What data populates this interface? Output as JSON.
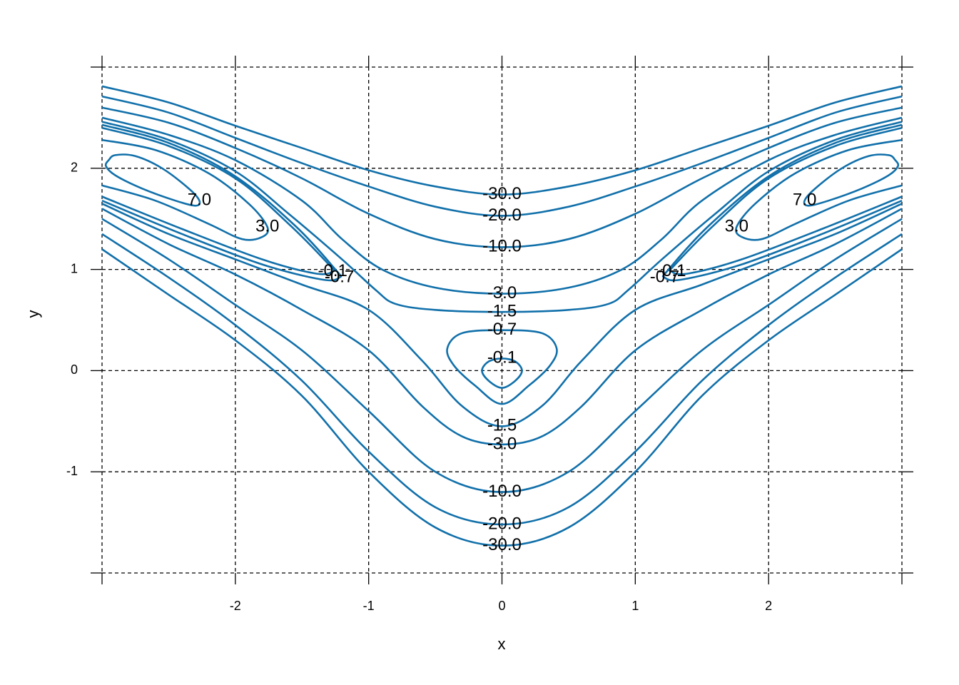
{
  "chart_data": {
    "type": "contour",
    "xlabel": "x",
    "ylabel": "y",
    "xlim": [
      -3,
      3
    ],
    "ylim": [
      -2,
      3
    ],
    "xticks": [
      -2,
      -1,
      0,
      1,
      2
    ],
    "yticks": [
      -1,
      0,
      1,
      2
    ],
    "grid": true,
    "color": "#1170aa",
    "contours": [
      {
        "level": 7,
        "label": "7.0",
        "pieces": [
          {
            "closed": true,
            "x": [
              -2.95,
              -2.9,
              -2.75,
              -2.55,
              -2.35,
              -2.27,
              -2.3,
              -2.45,
              -2.7,
              -2.9,
              -2.97
            ],
            "y": [
              2.08,
              2.13,
              2.12,
              2.0,
              1.8,
              1.68,
              1.63,
              1.68,
              1.8,
              1.93,
              2.02
            ]
          },
          {
            "closed": true,
            "x": [
              2.95,
              2.9,
              2.75,
              2.55,
              2.35,
              2.27,
              2.3,
              2.45,
              2.7,
              2.9,
              2.97
            ],
            "y": [
              2.08,
              2.13,
              2.12,
              2.0,
              1.8,
              1.68,
              1.63,
              1.68,
              1.8,
              1.93,
              2.02
            ]
          }
        ]
      },
      {
        "level": 3,
        "label": "3.0",
        "pieces": [
          {
            "closed": false,
            "x": [
              -3,
              -2.6,
              -2.2,
              -1.9,
              -1.76,
              -1.8,
              -1.95,
              -2.2,
              -2.6,
              -3
            ],
            "y": [
              2.28,
              2.18,
              1.95,
              1.65,
              1.42,
              1.32,
              1.3,
              1.45,
              1.68,
              1.83
            ]
          },
          {
            "closed": false,
            "x": [
              3,
              2.6,
              2.2,
              1.9,
              1.76,
              1.8,
              1.95,
              2.2,
              2.6,
              3
            ],
            "y": [
              2.28,
              2.18,
              1.95,
              1.65,
              1.42,
              1.32,
              1.3,
              1.45,
              1.68,
              1.83
            ]
          }
        ]
      },
      {
        "level": -0.1,
        "label": "-0.1",
        "pieces": [
          {
            "closed": false,
            "x": [
              -3,
              -2.5,
              -2.0,
              -1.6,
              -1.3,
              -1.27,
              -1.4,
              -1.8,
              -2.4,
              -3
            ],
            "y": [
              2.4,
              2.22,
              1.9,
              1.45,
              1.05,
              0.98,
              0.96,
              1.1,
              1.4,
              1.72
            ]
          },
          {
            "closed": false,
            "x": [
              3,
              2.5,
              2.0,
              1.6,
              1.3,
              1.27,
              1.4,
              1.8,
              2.4,
              3
            ],
            "y": [
              2.4,
              2.22,
              1.9,
              1.45,
              1.05,
              0.98,
              0.96,
              1.1,
              1.4,
              1.72
            ]
          },
          {
            "closed": true,
            "x": [
              0,
              0.1,
              0.15,
              0.1,
              0,
              -0.1,
              -0.15,
              -0.1
            ],
            "y": [
              0.12,
              0.09,
              0.0,
              -0.1,
              -0.17,
              -0.1,
              0.0,
              0.09
            ]
          }
        ]
      },
      {
        "level": -0.7,
        "label": "-0.7",
        "pieces": [
          {
            "closed": false,
            "x": [
              -3,
              -2.5,
              -2.0,
              -1.55,
              -1.25,
              -1.22,
              -1.35,
              -1.8,
              -2.4,
              -3
            ],
            "y": [
              2.43,
              2.25,
              1.92,
              1.43,
              1.0,
              0.92,
              0.9,
              1.05,
              1.35,
              1.68
            ]
          },
          {
            "closed": false,
            "x": [
              3,
              2.5,
              2.0,
              1.55,
              1.25,
              1.22,
              1.35,
              1.8,
              2.4,
              3
            ],
            "y": [
              2.43,
              2.25,
              1.92,
              1.43,
              1.0,
              0.92,
              0.9,
              1.05,
              1.35,
              1.68
            ]
          },
          {
            "closed": true,
            "x": [
              0,
              0.3,
              0.41,
              0.36,
              0.2,
              0,
              -0.2,
              -0.36,
              -0.41,
              -0.3
            ],
            "y": [
              0.4,
              0.37,
              0.22,
              0.05,
              -0.15,
              -0.33,
              -0.15,
              0.05,
              0.22,
              0.37
            ]
          }
        ]
      },
      {
        "level": -1.5,
        "label": "-1.5",
        "pieces": [
          {
            "closed": false,
            "x": [
              -3,
              -2.5,
              -2.0,
              -1.6,
              -1.2,
              -0.95,
              -0.8,
              -0.5,
              0,
              0.5,
              0.8,
              0.95,
              1.2,
              1.6,
              2.0,
              2.5,
              3
            ],
            "y": [
              2.46,
              2.28,
              1.97,
              1.55,
              1.1,
              0.8,
              0.66,
              0.6,
              0.58,
              0.6,
              0.66,
              0.8,
              1.1,
              1.55,
              1.97,
              2.28,
              2.46
            ]
          },
          {
            "closed": false,
            "x": [
              -3,
              -2.5,
              -2,
              -1.5,
              -1,
              -0.6,
              -0.3,
              0,
              0.3,
              0.6,
              1,
              1.5,
              2,
              2.5,
              3
            ],
            "y": [
              1.65,
              1.35,
              1.1,
              0.85,
              0.6,
              0.1,
              -0.35,
              -0.55,
              -0.35,
              0.1,
              0.6,
              0.85,
              1.1,
              1.35,
              1.65
            ]
          }
        ]
      },
      {
        "level": -3,
        "label": "-3.0",
        "pieces": [
          {
            "closed": false,
            "x": [
              -3,
              -2.5,
              -2,
              -1.5,
              -1.2,
              -0.9,
              -0.5,
              0,
              0.5,
              0.9,
              1.2,
              1.5,
              2,
              2.5,
              3
            ],
            "y": [
              2.5,
              2.33,
              2.08,
              1.68,
              1.3,
              1.0,
              0.82,
              0.76,
              0.82,
              1.0,
              1.3,
              1.68,
              2.08,
              2.33,
              2.5
            ]
          },
          {
            "closed": false,
            "x": [
              -3,
              -2.5,
              -2,
              -1.5,
              -1,
              -0.6,
              -0.3,
              0,
              0.3,
              0.6,
              1,
              1.5,
              2,
              2.5,
              3
            ],
            "y": [
              1.6,
              1.25,
              0.95,
              0.6,
              0.2,
              -0.35,
              -0.65,
              -0.73,
              -0.65,
              -0.35,
              0.2,
              0.6,
              0.95,
              1.25,
              1.6
            ]
          }
        ]
      },
      {
        "level": -10,
        "label": "-10.0",
        "pieces": [
          {
            "closed": false,
            "x": [
              -3,
              -2.5,
              -2,
              -1.5,
              -1,
              -0.5,
              0,
              0.5,
              1,
              1.5,
              2,
              2.5,
              3
            ],
            "y": [
              2.6,
              2.45,
              2.2,
              1.9,
              1.55,
              1.3,
              1.22,
              1.3,
              1.55,
              1.9,
              2.2,
              2.45,
              2.6
            ]
          },
          {
            "closed": false,
            "x": [
              -3,
              -2.5,
              -2,
              -1.5,
              -1,
              -0.5,
              0,
              0.5,
              1,
              1.5,
              2,
              2.5,
              3
            ],
            "y": [
              1.5,
              1.1,
              0.65,
              0.2,
              -0.4,
              -1.0,
              -1.2,
              -1.0,
              -0.4,
              0.2,
              0.65,
              1.1,
              1.5
            ]
          }
        ]
      },
      {
        "level": -20,
        "label": "-20.0",
        "pieces": [
          {
            "closed": false,
            "x": [
              -3,
              -2.5,
              -2,
              -1.5,
              -1,
              -0.5,
              0,
              0.5,
              1,
              1.5,
              2,
              2.5,
              3
            ],
            "y": [
              2.71,
              2.55,
              2.3,
              2.05,
              1.82,
              1.62,
              1.53,
              1.62,
              1.82,
              2.05,
              2.3,
              2.55,
              2.71
            ]
          },
          {
            "closed": false,
            "x": [
              -3,
              -2.5,
              -2,
              -1.5,
              -1,
              -0.5,
              0,
              0.5,
              1,
              1.5,
              2,
              2.5,
              3
            ],
            "y": [
              1.35,
              0.92,
              0.45,
              -0.1,
              -0.8,
              -1.35,
              -1.52,
              -1.35,
              -0.8,
              -0.1,
              0.45,
              0.92,
              1.35
            ]
          }
        ]
      },
      {
        "level": -30,
        "label": "-30.0",
        "pieces": [
          {
            "closed": false,
            "x": [
              -3,
              -2.5,
              -2,
              -1.5,
              -1,
              -0.5,
              0,
              0.5,
              1,
              1.5,
              2,
              2.5,
              3
            ],
            "y": [
              2.81,
              2.65,
              2.42,
              2.2,
              1.98,
              1.82,
              1.74,
              1.82,
              1.98,
              2.2,
              2.42,
              2.65,
              2.81
            ]
          },
          {
            "closed": false,
            "x": [
              -3,
              -2.5,
              -2,
              -1.5,
              -1,
              -0.5,
              0,
              0.5,
              1,
              1.5,
              2,
              2.5,
              3
            ],
            "y": [
              1.2,
              0.75,
              0.3,
              -0.25,
              -1.0,
              -1.55,
              -1.73,
              -1.55,
              -1.0,
              -0.25,
              0.3,
              0.75,
              1.2
            ]
          }
        ]
      }
    ]
  }
}
